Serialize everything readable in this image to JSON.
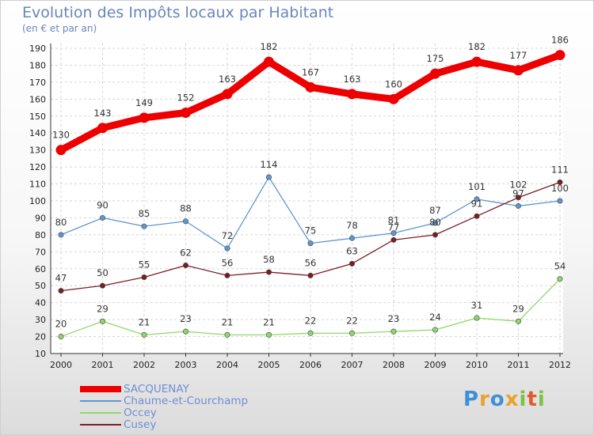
{
  "chart_data": {
    "type": "line",
    "title": "Evolution des Impôts locaux par Habitant",
    "subtitle": "(en € et par an)",
    "categories": [
      "2000",
      "2001",
      "2002",
      "2003",
      "2004",
      "2005",
      "2006",
      "2007",
      "2008",
      "2009",
      "2010",
      "2011",
      "2012"
    ],
    "ylim": [
      10,
      190
    ],
    "yticks": [
      10,
      20,
      30,
      40,
      50,
      60,
      70,
      80,
      90,
      100,
      110,
      120,
      130,
      140,
      150,
      160,
      170,
      180,
      190
    ],
    "grid": true,
    "series": [
      {
        "name": "SACQUENAY",
        "color": "#ee0000",
        "values": [
          130,
          143,
          149,
          152,
          163,
          182,
          167,
          163,
          160,
          175,
          182,
          177,
          186
        ]
      },
      {
        "name": "Chaume-et-Courchamp",
        "color": "#5f97d0",
        "values": [
          80,
          90,
          85,
          88,
          72,
          114,
          75,
          78,
          81,
          87,
          101,
          97,
          100
        ]
      },
      {
        "name": "Occey",
        "color": "#8fd86a",
        "values": [
          20,
          29,
          21,
          23,
          21,
          21,
          22,
          22,
          23,
          24,
          31,
          29,
          54
        ]
      },
      {
        "name": "Cusey",
        "color": "#7a1e25",
        "values": [
          47,
          50,
          55,
          62,
          56,
          58,
          56,
          63,
          77,
          80,
          91,
          102,
          111
        ]
      }
    ]
  },
  "logo": {
    "letters": [
      "P",
      "r",
      "o",
      "x",
      "i",
      "t",
      "i"
    ],
    "colors": [
      "#3d8fd8",
      "#e8a22a",
      "#3d8fd8",
      "#e8a22a",
      "#7cc243",
      "#e05a2a",
      "#7cc243"
    ]
  }
}
